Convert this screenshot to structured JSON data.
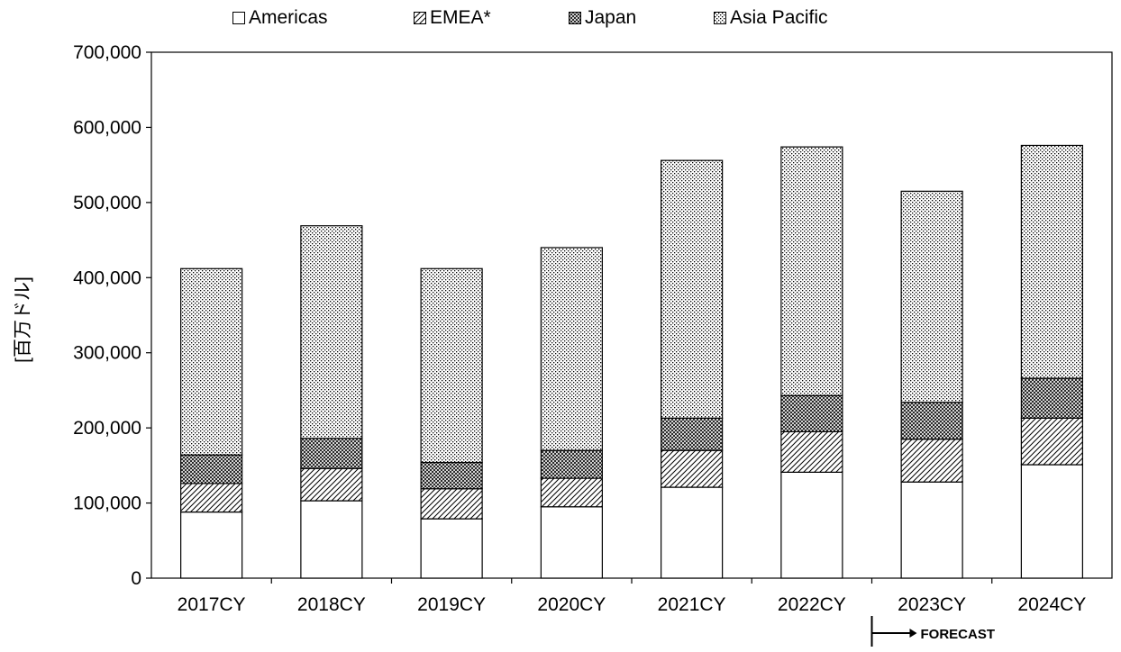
{
  "chart_data": {
    "type": "bar",
    "stacked": true,
    "categories": [
      "2017CY",
      "2018CY",
      "2019CY",
      "2020CY",
      "2021CY",
      "2022CY",
      "2023CY",
      "2024CY"
    ],
    "series": [
      {
        "name": "Americas",
        "pattern": "none",
        "values": [
          88000,
          103000,
          79000,
          95000,
          121000,
          141000,
          128000,
          151000
        ]
      },
      {
        "name": "EMEA*",
        "pattern": "diagonal",
        "values": [
          38000,
          43000,
          40000,
          38000,
          49000,
          54000,
          57000,
          62000
        ]
      },
      {
        "name": "Japan",
        "pattern": "crosshatch",
        "values": [
          38000,
          40000,
          35000,
          37000,
          43000,
          48000,
          49000,
          53000
        ]
      },
      {
        "name": "Asia Pacific",
        "pattern": "dots",
        "values": [
          248000,
          283000,
          258000,
          270000,
          343000,
          331000,
          281000,
          310000
        ]
      }
    ],
    "ylabel": "[百万ドル]",
    "ylim": [
      0,
      700000
    ],
    "yticks": [
      0,
      100000,
      200000,
      300000,
      400000,
      500000,
      600000,
      700000
    ],
    "ytick_labels": [
      "0",
      "100,000",
      "200,000",
      "300,000",
      "400,000",
      "500,000",
      "600,000",
      "700,000"
    ],
    "grid": false,
    "legend_position": "top",
    "annotation": {
      "text": "FORECAST",
      "from_category": "2023CY"
    }
  }
}
